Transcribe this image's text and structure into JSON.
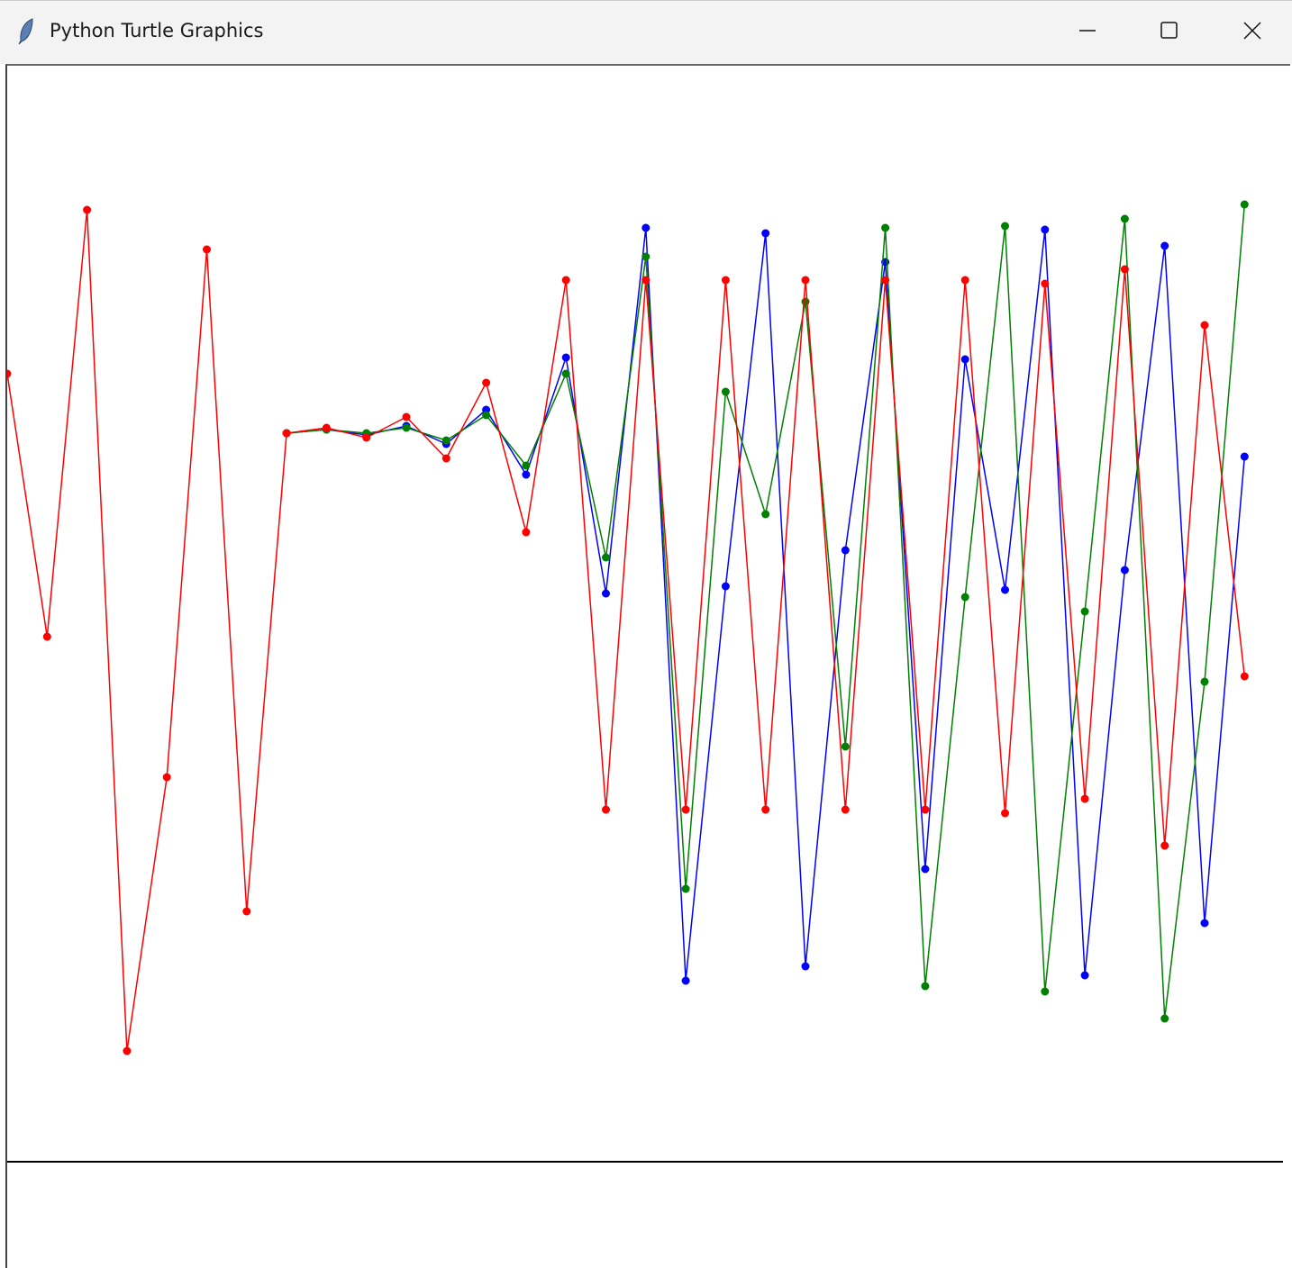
{
  "window": {
    "title": "Python Turtle Graphics",
    "icon": "feather-icon",
    "controls": [
      "minimize-icon",
      "maximize-icon",
      "close-icon"
    ]
  },
  "chart_data": {
    "type": "line",
    "title": "",
    "xlabel": "",
    "ylabel": "",
    "grid": false,
    "baseline": 0,
    "x": [
      0,
      1,
      2,
      3,
      4,
      5,
      6,
      7,
      8,
      9,
      10,
      11,
      12,
      13,
      14,
      15,
      16,
      17,
      18,
      19,
      20,
      21,
      22,
      23,
      24,
      25,
      26,
      27,
      28,
      29,
      30,
      31
    ],
    "ylim": [
      -116,
      1217
    ],
    "series": [
      {
        "color": "#0000ff",
        "values": [
          null,
          null,
          null,
          null,
          null,
          null,
          null,
          809,
          813,
          807,
          817,
          797,
          835,
          763,
          893,
          631,
          1037,
          201,
          639,
          1031,
          217,
          679,
          999,
          325,
          891,
          635,
          1035,
          207,
          657,
          1017,
          265,
          783
        ]
      },
      {
        "color": "#008000",
        "values": [
          null,
          null,
          null,
          null,
          null,
          null,
          null,
          809,
          813,
          809,
          815,
          801,
          829,
          773,
          875,
          671,
          1005,
          303,
          855,
          719,
          955,
          461,
          1037,
          195,
          627,
          1039,
          189,
          611,
          1047,
          159,
          533,
          1063
        ]
      },
      {
        "color": "#ff0000",
        "values": [
          875,
          583,
          1057,
          123,
          427,
          1013,
          278,
          809,
          815,
          804,
          827,
          781,
          865,
          699,
          979,
          391,
          979,
          391,
          979,
          391,
          979,
          391,
          979,
          391,
          979,
          387,
          975,
          403,
          991,
          351,
          929,
          539
        ]
      }
    ]
  }
}
